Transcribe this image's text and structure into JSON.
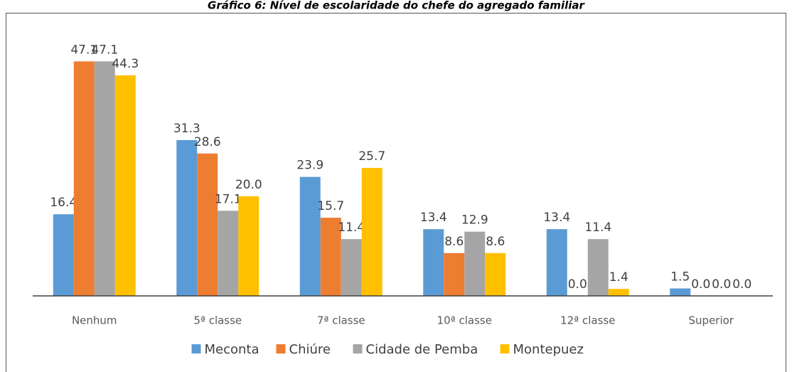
{
  "chart_data": {
    "type": "bar",
    "title": "Gráfico 6: Nível de escolaridade do chefe do agregado familiar",
    "categories": [
      "Nenhum",
      "5ª classe",
      "7ª classe",
      "10ª classe",
      "12ª classe",
      "Superior"
    ],
    "series": [
      {
        "name": "Meconta",
        "color": "#5b9bd5",
        "values": [
          16.4,
          31.3,
          23.9,
          13.4,
          13.4,
          1.5
        ],
        "value_labels": [
          "16.4",
          "31.3",
          "23.9",
          "13.4",
          "13.4",
          "1.5"
        ]
      },
      {
        "name": "Chiúre",
        "color": "#ed7d31",
        "values": [
          47.1,
          28.6,
          15.7,
          8.6,
          0.0,
          0.0
        ],
        "value_labels": [
          "47.1",
          "28.6",
          "15.7",
          "8.6",
          "0.0",
          "0.0"
        ]
      },
      {
        "name": "Cidade de Pemba",
        "color": "#a5a5a5",
        "values": [
          47.1,
          17.1,
          11.4,
          12.9,
          11.4,
          0.0
        ],
        "value_labels": [
          "47.1",
          "17.1",
          "11.4",
          "12.9",
          "11.4",
          "0.0"
        ]
      },
      {
        "name": "Montepuez",
        "color": "#ffc000",
        "values": [
          44.3,
          20.0,
          25.7,
          8.6,
          1.4,
          0.0
        ],
        "value_labels": [
          "44.3",
          "20.0",
          "25.7",
          "8.6",
          "1.4",
          "0.0"
        ]
      }
    ],
    "ylim": [
      0,
      50
    ],
    "legend": "bottom"
  }
}
